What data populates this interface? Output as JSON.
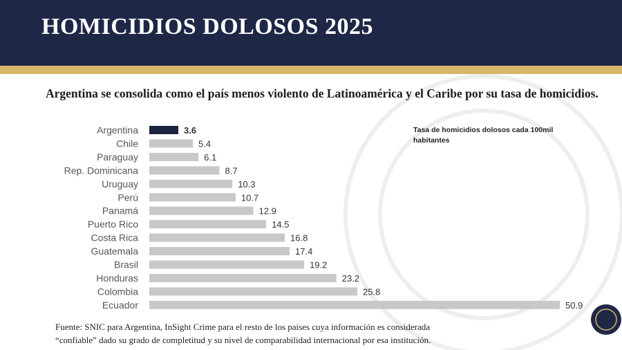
{
  "header": {
    "title": "HOMICIDIOS DOLOSOS 2025"
  },
  "chart_data": {
    "type": "bar",
    "orientation": "horizontal",
    "title": "Argentina se consolida como el país menos violento de Latinoamérica y el Caribe por su tasa de homicidios.",
    "note": "Tasa de homicidios dolosos cada 100mil habitantes",
    "categories": [
      "Argentina",
      "Chile",
      "Paraguay",
      "Rep. Dominicana",
      "Uruguay",
      "Perú",
      "Panamá",
      "Puerto Rico",
      "Costa Rica",
      "Guatemala",
      "Brasil",
      "Honduras",
      "Colombia",
      "Ecuador"
    ],
    "values": [
      3.6,
      5.4,
      6.1,
      8.7,
      10.3,
      10.7,
      12.9,
      14.5,
      16.8,
      17.4,
      19.2,
      23.2,
      25.8,
      50.9
    ],
    "colors": [
      "#1c2340",
      "#c8c8c8",
      "#c8c8c8",
      "#c8c8c8",
      "#c8c8c8",
      "#c8c8c8",
      "#c8c8c8",
      "#c8c8c8",
      "#c8c8c8",
      "#c8c8c8",
      "#c8c8c8",
      "#c8c8c8",
      "#c8c8c8",
      "#c8c8c8"
    ]
  },
  "footer": {
    "source": [
      "Fuente: SNIC para Argentina, InSight Crime para el resto de los paises cuya información es considerada",
      "“confiable” dado su grado de completitud y su nivel de comparabilidad internacional por esa institución."
    ]
  }
}
